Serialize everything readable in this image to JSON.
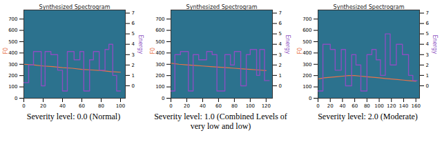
{
  "chart_data": [
    {
      "type": "line",
      "title": "Synthesized Spectrogram",
      "caption": "Severity level: 0.0 (Normal)",
      "xlim": [
        0,
        105
      ],
      "xticks": [
        0,
        20,
        40,
        60,
        80,
        100
      ],
      "ylim": [
        0,
        780
      ],
      "yticks": [
        0,
        100,
        200,
        300,
        400,
        500,
        600,
        700
      ],
      "y2lim": [
        -1.2,
        7.3
      ],
      "y2ticks": [
        0,
        1,
        2,
        3,
        4,
        5,
        6,
        7
      ],
      "series": [
        {
          "name": "F0",
          "color": "#e8734a",
          "x": [
            0,
            10,
            20,
            30,
            40,
            50,
            60,
            70,
            80,
            90,
            100
          ],
          "values": [
            300,
            295,
            285,
            280,
            270,
            265,
            255,
            250,
            245,
            235,
            230
          ]
        },
        {
          "name": "Energy",
          "color": "#8a4fc0",
          "axis": "y2",
          "type": "step",
          "x": [
            0,
            5,
            10,
            18,
            22,
            28,
            35,
            40,
            45,
            52,
            58,
            62,
            68,
            72,
            78,
            84,
            88,
            92,
            96,
            100
          ],
          "values": [
            0.3,
            2.0,
            3.3,
            0.0,
            3.3,
            3.0,
            1.5,
            -0.5,
            3.3,
            2.5,
            3.3,
            -0.5,
            2.5,
            3.3,
            1.5,
            3.5,
            4.0,
            1.0,
            -0.5,
            -0.5
          ]
        }
      ]
    },
    {
      "type": "line",
      "title": "Synthesized Spectrogram",
      "caption": "Severity level: 1.0 (Combined Levels of very low and low)",
      "xlim": [
        0,
        128
      ],
      "xticks": [
        0,
        20,
        40,
        60,
        80,
        100,
        120
      ],
      "ylim": [
        0,
        780
      ],
      "yticks": [
        0,
        100,
        200,
        300,
        400,
        500,
        600,
        700
      ],
      "y2lim": [
        -1.2,
        7.3
      ],
      "y2ticks": [
        0,
        1,
        2,
        3,
        4,
        5,
        6,
        7
      ],
      "series": [
        {
          "name": "F0",
          "color": "#e8734a",
          "x": [
            0,
            10,
            20,
            30,
            40,
            50,
            60,
            70,
            80,
            90,
            100,
            110,
            120
          ],
          "values": [
            310,
            300,
            295,
            290,
            285,
            280,
            275,
            270,
            265,
            260,
            255,
            250,
            245
          ]
        },
        {
          "name": "Energy",
          "color": "#8a4fc0",
          "axis": "y2",
          "type": "step",
          "x": [
            0,
            5,
            12,
            22,
            28,
            35,
            45,
            52,
            58,
            68,
            75,
            80,
            88,
            95,
            100,
            108,
            112,
            118,
            124
          ],
          "values": [
            -0.5,
            3.0,
            3.3,
            -0.5,
            3.0,
            2.5,
            3.3,
            3.0,
            -0.5,
            3.0,
            2.0,
            3.3,
            0.0,
            3.0,
            3.5,
            1.0,
            3.5,
            0.5,
            0.5
          ]
        }
      ]
    },
    {
      "type": "line",
      "title": "Synthesized Spectrogram",
      "caption": "Severity level: 2.0 (Moderate)",
      "xlim": [
        0,
        166
      ],
      "xticks": [
        0,
        20,
        40,
        60,
        80,
        100,
        120,
        140,
        160
      ],
      "ylim": [
        0,
        780
      ],
      "yticks": [
        0,
        100,
        200,
        300,
        400,
        500,
        600,
        700
      ],
      "y2lim": [
        -1.2,
        7.3
      ],
      "y2ticks": [
        0,
        1,
        2,
        3,
        4,
        5,
        6,
        7
      ],
      "series": [
        {
          "name": "F0",
          "color": "#e8734a",
          "x": [
            0,
            10,
            20,
            30,
            40,
            50,
            60,
            70,
            80,
            90,
            100,
            110,
            120,
            130,
            140,
            150,
            160
          ],
          "values": [
            170,
            180,
            185,
            190,
            195,
            200,
            200,
            195,
            190,
            185,
            180,
            175,
            170,
            165,
            160,
            155,
            150
          ]
        },
        {
          "name": "Energy",
          "color": "#8a4fc0",
          "axis": "y2",
          "type": "step",
          "x": [
            0,
            8,
            20,
            28,
            38,
            45,
            55,
            62,
            70,
            80,
            88,
            95,
            102,
            110,
            118,
            128,
            138,
            148,
            155,
            162
          ],
          "values": [
            -0.5,
            4.0,
            3.5,
            1.5,
            3.5,
            0.0,
            3.0,
            2.0,
            -0.5,
            3.0,
            3.5,
            2.5,
            1.0,
            5.0,
            2.0,
            4.0,
            3.0,
            1.0,
            0.5,
            0.5
          ]
        }
      ]
    }
  ]
}
